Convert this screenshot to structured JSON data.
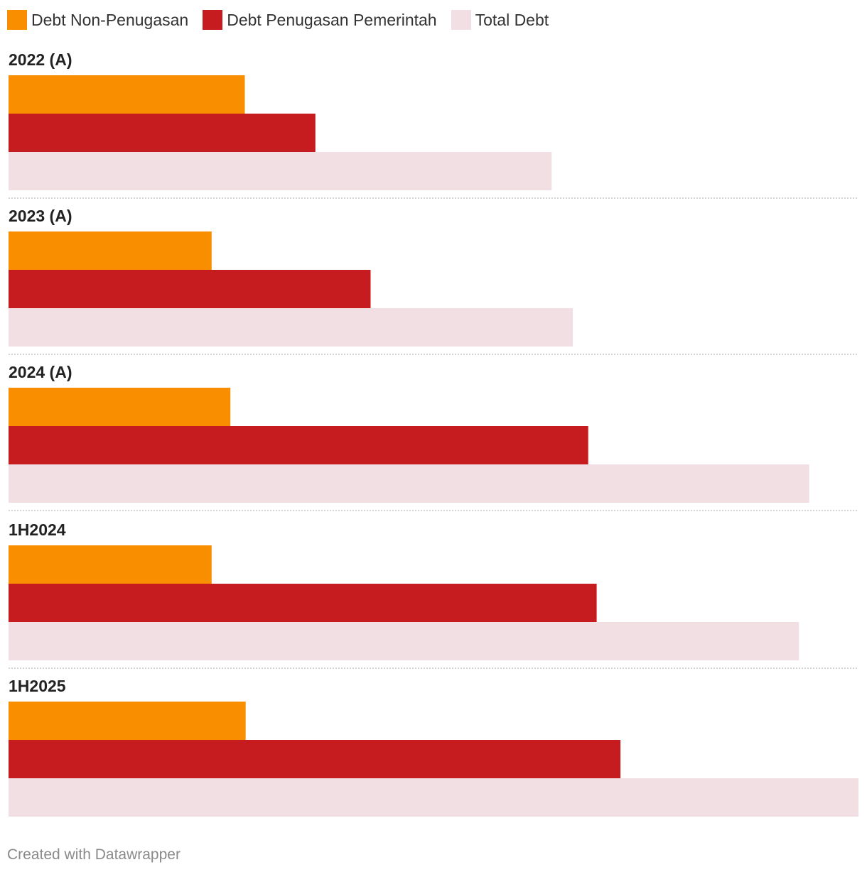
{
  "chart_data": {
    "type": "bar",
    "orientation": "horizontal-grouped",
    "title": "",
    "xlabel": "",
    "ylabel": "",
    "xlim": [
      0,
      100
    ],
    "grid": false,
    "legend_position": "top-left",
    "categories": [
      "2022 (A)",
      "2023 (A)",
      "2024 (A)",
      "1H2024",
      "1H2025"
    ],
    "series": [
      {
        "name": "Debt Non-Penugasan",
        "color": "#f98e00",
        "values": [
          27.8,
          23.9,
          26.1,
          23.9,
          27.9
        ]
      },
      {
        "name": "Debt Penugasan Pemerintah",
        "color": "#c71c1f",
        "values": [
          36.1,
          42.6,
          68.2,
          69.2,
          72.0
        ]
      },
      {
        "name": "Total Debt",
        "color": "#f1dfe4",
        "values": [
          63.9,
          66.4,
          94.2,
          93.0,
          100.0
        ]
      }
    ]
  },
  "footer": {
    "credit": "Created with Datawrapper"
  }
}
